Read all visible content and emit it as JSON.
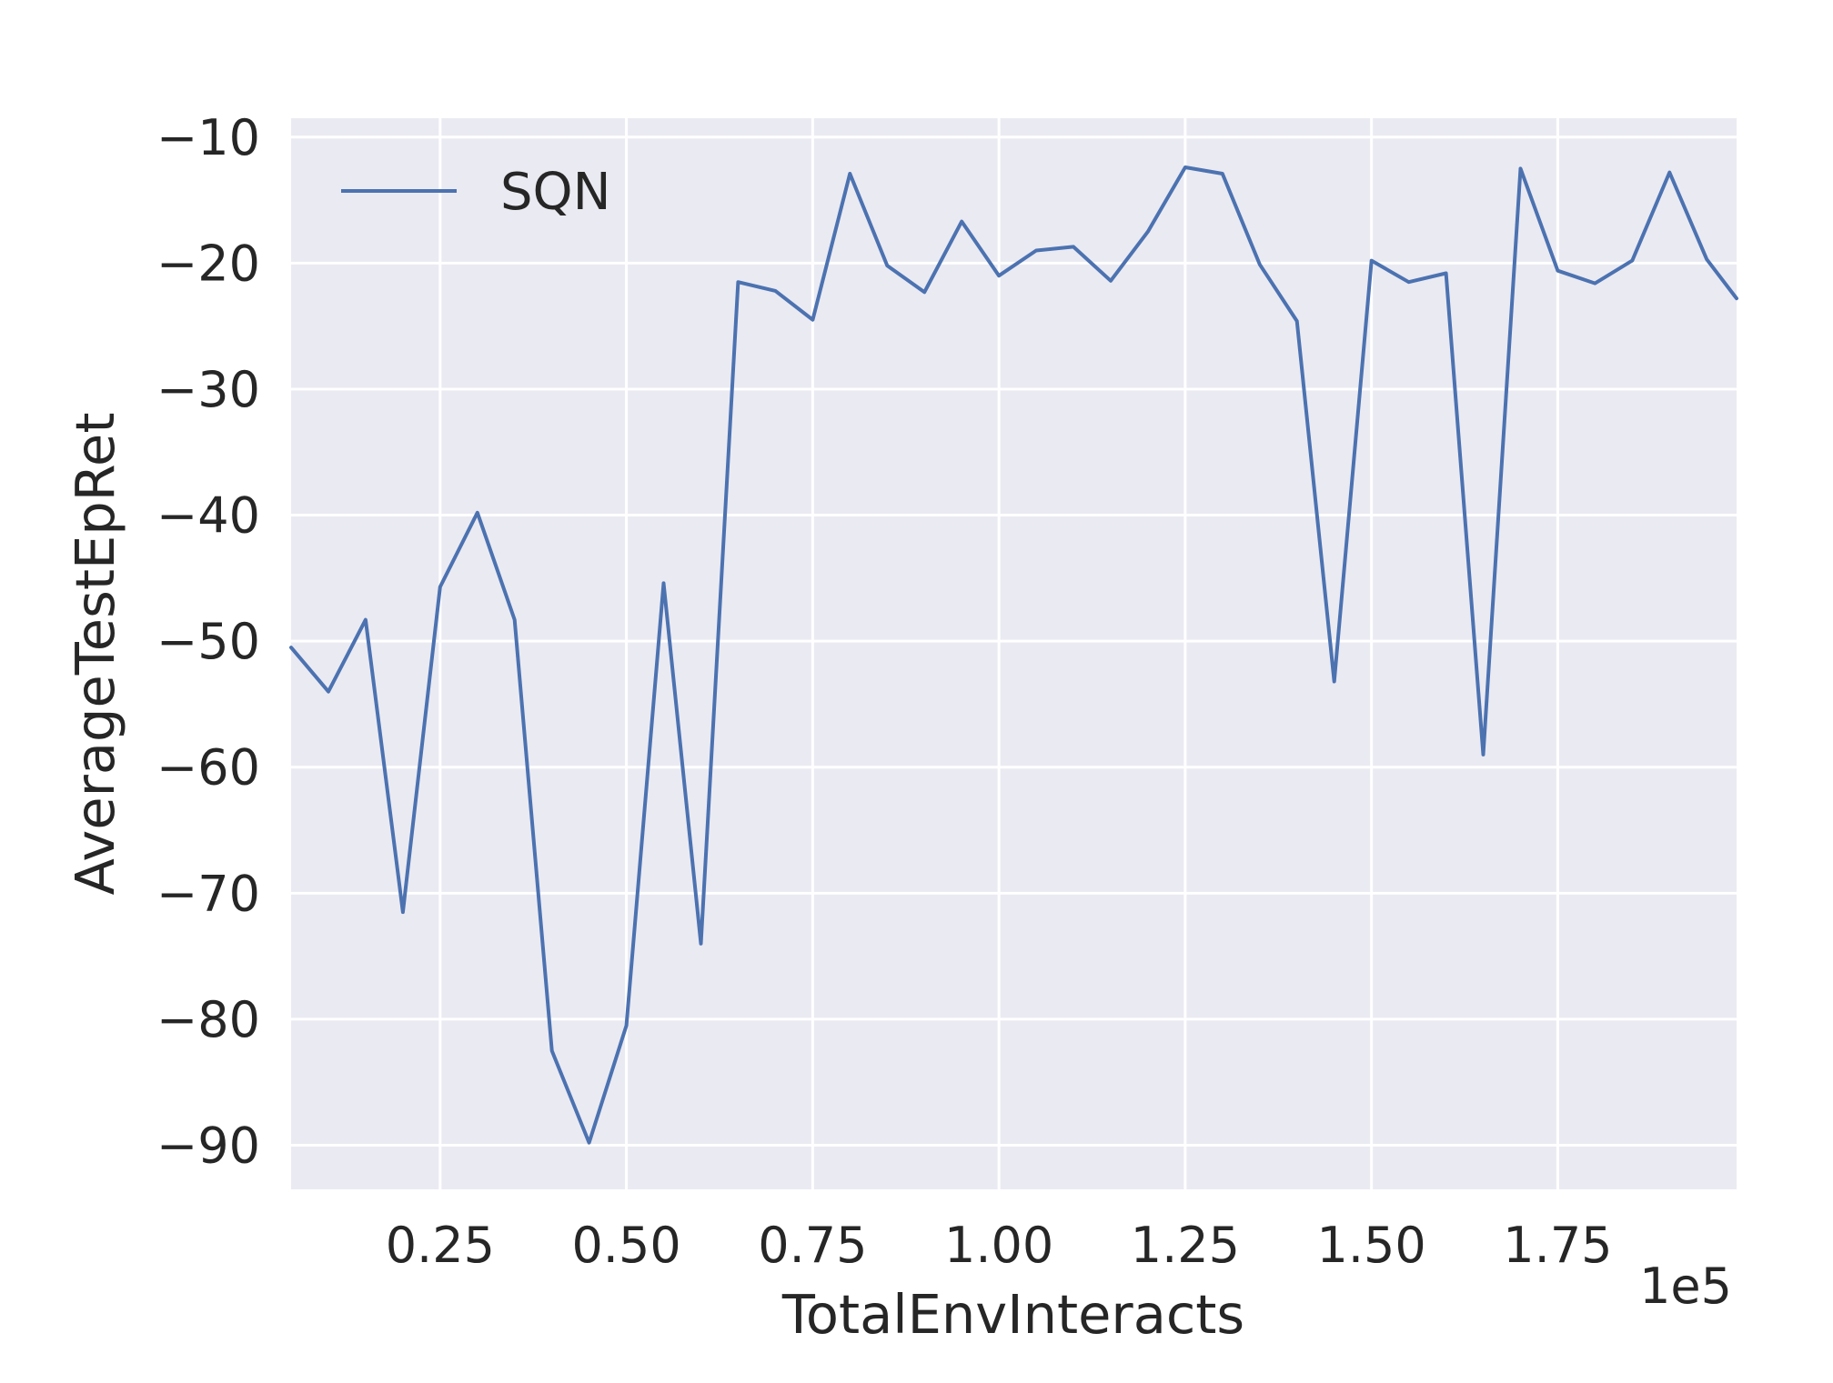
{
  "chart_data": {
    "type": "line",
    "xlabel": "TotalEnvInteracts",
    "ylabel": "AverageTestEpRet",
    "x_offset_label": "1e5",
    "xlim": [
      0.05,
      1.99
    ],
    "ylim": [
      -93.5,
      -8.5
    ],
    "x_ticks": [
      0.25,
      0.5,
      0.75,
      1.0,
      1.25,
      1.5,
      1.75
    ],
    "x_tick_labels": [
      "0.25",
      "0.50",
      "0.75",
      "1.00",
      "1.25",
      "1.50",
      "1.75"
    ],
    "y_ticks": [
      -10,
      -20,
      -30,
      -40,
      -50,
      -60,
      -70,
      -80,
      -90
    ],
    "y_tick_labels": [
      "−10",
      "−20",
      "−30",
      "−40",
      "−50",
      "−60",
      "−70",
      "−80",
      "−90"
    ],
    "grid": true,
    "legend": {
      "position": "top-left",
      "entries": [
        "SQN"
      ]
    },
    "series": [
      {
        "name": "SQN",
        "color": "#4c72b0",
        "x": [
          0.05,
          0.1,
          0.15,
          0.2,
          0.25,
          0.3,
          0.35,
          0.4,
          0.45,
          0.5,
          0.55,
          0.6,
          0.65,
          0.7,
          0.75,
          0.8,
          0.85,
          0.9,
          0.95,
          1.0,
          1.05,
          1.1,
          1.15,
          1.2,
          1.25,
          1.3,
          1.35,
          1.4,
          1.45,
          1.5,
          1.55,
          1.6,
          1.65,
          1.7,
          1.75,
          1.8,
          1.85,
          1.9,
          1.95,
          1.99
        ],
        "y": [
          -50.5,
          -54.0,
          -48.3,
          -71.5,
          -45.7,
          -39.8,
          -48.3,
          -82.5,
          -89.8,
          -80.5,
          -45.4,
          -74.0,
          -21.5,
          -22.2,
          -24.5,
          -12.9,
          -20.2,
          -22.3,
          -16.7,
          -21.0,
          -19.0,
          -18.7,
          -21.4,
          -17.5,
          -12.4,
          -12.9,
          -20.1,
          -24.6,
          -53.2,
          -19.8,
          -21.5,
          -20.8,
          -59.0,
          -12.5,
          -20.6,
          -21.6,
          -19.8,
          -12.8,
          -19.7,
          -22.8
        ]
      }
    ]
  }
}
